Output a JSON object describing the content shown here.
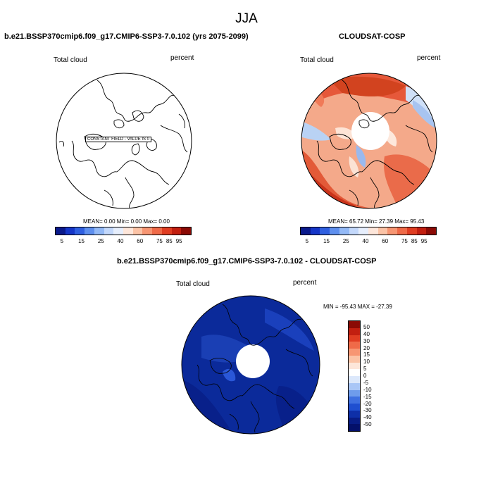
{
  "figure": {
    "season": "JJA"
  },
  "panel_left": {
    "title": "b.e21.BSSP370cmip6.f09_g17.CMIP6-SSP3-7.0.102 (yrs 2075-2099)",
    "variable": "Total cloud",
    "units": "percent",
    "stats": "MEAN=   0.00  Min=   0.00  Max=   0.00",
    "constant_field_note": "CONSTANT FIELD - VALUE IS 0"
  },
  "panel_right": {
    "title": "CLOUDSAT-COSP",
    "variable": "Total cloud",
    "units": "percent",
    "stats": "MEAN=  65.72  Min=  27.39  Max=  95.43"
  },
  "panel_diff": {
    "title": "b.e21.BSSP370cmip6.f09_g17.CMIP6-SSP3-7.0.102 - CLOUDSAT-COSP",
    "variable": "Total cloud",
    "units": "percent",
    "minmax": "MIN = -95.43 MAX = -27.39"
  },
  "colorbar_top": {
    "labels": [
      "5",
      "15",
      "25",
      "40",
      "60",
      "75",
      "85",
      "95"
    ],
    "colors": [
      "#0a1a8c",
      "#1536c8",
      "#2f5fe0",
      "#5e8fee",
      "#93b9f6",
      "#c3d8fb",
      "#e6eefc",
      "#fde6da",
      "#fbc3a6",
      "#f79673",
      "#ef6a48",
      "#e03d22",
      "#c21f10",
      "#8b0a05"
    ]
  },
  "colorbar_diff": {
    "labels": [
      "50",
      "40",
      "30",
      "20",
      "15",
      "10",
      "5",
      "0",
      "-5",
      "-10",
      "-15",
      "-20",
      "-30",
      "-40",
      "-50"
    ],
    "colors": [
      "#8b0a05",
      "#c21f10",
      "#e03d22",
      "#ef6a48",
      "#f79673",
      "#fbc3a6",
      "#fde6da",
      "#ffffff",
      "#dce8fb",
      "#a9c6f6",
      "#6f9ceb",
      "#3f70e0",
      "#1f4fd0",
      "#0e2fa8",
      "#081c85",
      "#04106a"
    ]
  },
  "colors": {
    "land": "#ffffff",
    "coast": "#000000",
    "diff_fill": "#0b2a9a",
    "diff_dark": "#08208a",
    "pole_gap": "#ffffff"
  }
}
